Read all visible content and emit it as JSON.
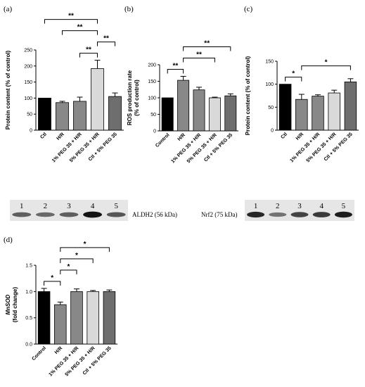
{
  "chart_data": [
    {
      "panel": "(a)",
      "type": "bar",
      "ylabel": "Protein content (% of control)",
      "ylim": [
        0,
        250
      ],
      "yticks": [
        0,
        50,
        100,
        150,
        200,
        250
      ],
      "categories": [
        "Ctl",
        "H/R",
        "1% PEG 35 + H/R",
        "5% PEG 35 + H/R",
        "Ctl + 5% PEG 35"
      ],
      "values": [
        100,
        86,
        90,
        192,
        105
      ],
      "errors": [
        0,
        4,
        13,
        26,
        11
      ],
      "colors": [
        "#000000",
        "#888888",
        "#888888",
        "#d9d9d9",
        "#6e6e6e"
      ],
      "significance": [
        {
          "from": 0,
          "to": 3,
          "label": "**"
        },
        {
          "from": 1,
          "to": 3,
          "label": "**"
        },
        {
          "from": 2,
          "to": 3,
          "label": "**"
        },
        {
          "from": 3,
          "to": 4,
          "label": "**"
        }
      ]
    },
    {
      "panel": "(b)",
      "type": "bar",
      "ylabel": "ROS production rate (% of control)",
      "ylim": [
        0,
        200
      ],
      "yticks": [
        0,
        50,
        100,
        150,
        200
      ],
      "categories": [
        "Control",
        "H/R",
        "1% PEG 35 + H/R",
        "5% PEG 35 + H/R",
        "Ctl + 5% PEG 35"
      ],
      "values": [
        100,
        153,
        124,
        100,
        106
      ],
      "errors": [
        0,
        12,
        8,
        2,
        6
      ],
      "colors": [
        "#000000",
        "#888888",
        "#888888",
        "#d9d9d9",
        "#6e6e6e"
      ],
      "significance": [
        {
          "from": 0,
          "to": 1,
          "label": "**"
        },
        {
          "from": 1,
          "to": 3,
          "label": "**"
        },
        {
          "from": 1,
          "to": 4,
          "label": "**"
        }
      ]
    },
    {
      "panel": "(c)",
      "type": "bar",
      "ylabel": "Protein content (% of control)",
      "ylim": [
        0,
        150
      ],
      "yticks": [
        0,
        50,
        100,
        150
      ],
      "categories": [
        "Ctl",
        "H/R",
        "1% PEG 35 + H/R",
        "5% PEG 35 + H/R",
        "Ctl + 5% PEG 35"
      ],
      "values": [
        100,
        67,
        74,
        81,
        105
      ],
      "errors": [
        0,
        11,
        3,
        6,
        7
      ],
      "colors": [
        "#000000",
        "#888888",
        "#888888",
        "#d9d9d9",
        "#6e6e6e"
      ],
      "significance": [
        {
          "from": 0,
          "to": 1,
          "label": "*"
        },
        {
          "from": 1,
          "to": 4,
          "label": "*"
        }
      ]
    },
    {
      "panel": "(d)",
      "type": "bar",
      "ylabel": "MnSOD",
      "ylabel2": "(fold change)",
      "ylim": [
        0,
        1.5
      ],
      "yticks": [
        0.0,
        0.5,
        1.0,
        1.5
      ],
      "categories": [
        "Control",
        "H/R",
        "1% PEG 35 + H/R",
        "5% PEG 35 + H/R",
        "Ctl + 5% PEG 35"
      ],
      "values": [
        1.0,
        0.75,
        1.0,
        1.0,
        1.0
      ],
      "errors": [
        0.06,
        0.05,
        0.05,
        0.02,
        0.03
      ],
      "colors": [
        "#000000",
        "#888888",
        "#888888",
        "#d9d9d9",
        "#6e6e6e"
      ],
      "significance": [
        {
          "from": 0,
          "to": 1,
          "label": "*"
        },
        {
          "from": 1,
          "to": 2,
          "label": "*"
        },
        {
          "from": 1,
          "to": 3,
          "label": "*"
        },
        {
          "from": 1,
          "to": 4,
          "label": "*"
        }
      ]
    }
  ],
  "blots": [
    {
      "label": "ALDH2 (56 kDa)",
      "lanes": [
        "1",
        "2",
        "3",
        "4",
        "5"
      ],
      "intensity": [
        0.55,
        0.5,
        0.55,
        0.95,
        0.6
      ]
    },
    {
      "label": "Nrf2 (75 kDa)",
      "lanes": [
        "1",
        "2",
        "3",
        "4",
        "5"
      ],
      "intensity": [
        0.85,
        0.45,
        0.7,
        0.75,
        0.9
      ]
    }
  ]
}
